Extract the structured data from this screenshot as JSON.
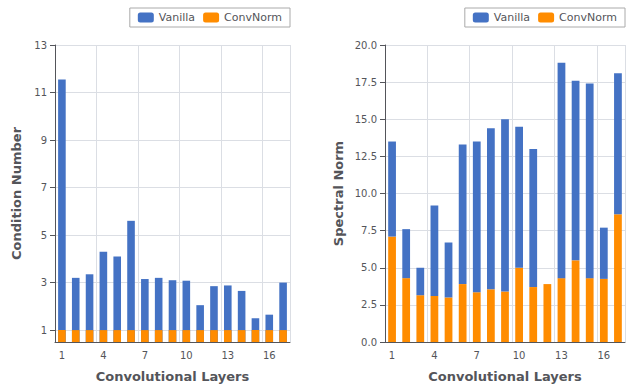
{
  "chart_data": [
    {
      "type": "bar",
      "xlabel": "Convolutional Layers",
      "ylabel": "Condition Number",
      "categories": [
        "1",
        null,
        null,
        "4",
        null,
        null,
        "7",
        null,
        null,
        "10",
        null,
        null,
        "13",
        null,
        null,
        "16",
        null
      ],
      "series": [
        {
          "name": "Vanilla",
          "color": "#4472c4",
          "values": [
            11.55,
            3.2,
            3.35,
            4.3,
            4.1,
            5.6,
            3.15,
            3.2,
            3.1,
            3.08,
            2.05,
            2.85,
            2.88,
            2.65,
            1.5,
            1.65,
            3.0
          ]
        },
        {
          "name": "ConvNorm",
          "color": "#ff8c00",
          "values": [
            1.0,
            1.0,
            1.0,
            1.0,
            1.0,
            1.0,
            1.0,
            1.0,
            1.0,
            1.0,
            1.0,
            1.0,
            1.0,
            1.0,
            1.0,
            1.0,
            1.0
          ]
        }
      ],
      "ylim": [
        0.5,
        13
      ],
      "yticks": [
        1,
        3,
        5,
        7,
        9,
        11,
        13
      ],
      "grid": true,
      "legend": "upper right",
      "stacked": false
    },
    {
      "type": "bar",
      "xlabel": "Convolutional Layers",
      "ylabel": "Spectral Norm",
      "categories": [
        "1",
        null,
        null,
        "4",
        null,
        null,
        "7",
        null,
        null,
        "10",
        null,
        null,
        "13",
        null,
        null,
        "16",
        null
      ],
      "series": [
        {
          "name": "Vanilla",
          "color": "#4472c4",
          "values": [
            6.4,
            3.3,
            1.85,
            6.1,
            3.7,
            9.4,
            10.15,
            10.85,
            11.6,
            9.5,
            9.3,
            0,
            14.5,
            12.1,
            13.1,
            3.45,
            9.5
          ]
        },
        {
          "name": "ConvNorm",
          "color": "#ff8c00",
          "values": [
            7.1,
            4.3,
            3.15,
            3.1,
            3.0,
            3.9,
            3.35,
            3.55,
            3.4,
            5.0,
            3.7,
            3.9,
            4.3,
            5.5,
            4.3,
            4.25,
            8.6
          ]
        }
      ],
      "ylim": [
        0,
        20
      ],
      "yticks": [
        {
          "value": 0,
          "label": "0.0"
        },
        2.5,
        {
          "value": 5,
          "label": "5.0"
        },
        7.5,
        {
          "value": 10,
          "label": "10.0"
        },
        12.5,
        {
          "value": 15,
          "label": "15.0"
        },
        17.5,
        {
          "value": 20,
          "label": "20.0"
        }
      ],
      "grid": true,
      "legend": "upper right",
      "stacked": true
    }
  ]
}
